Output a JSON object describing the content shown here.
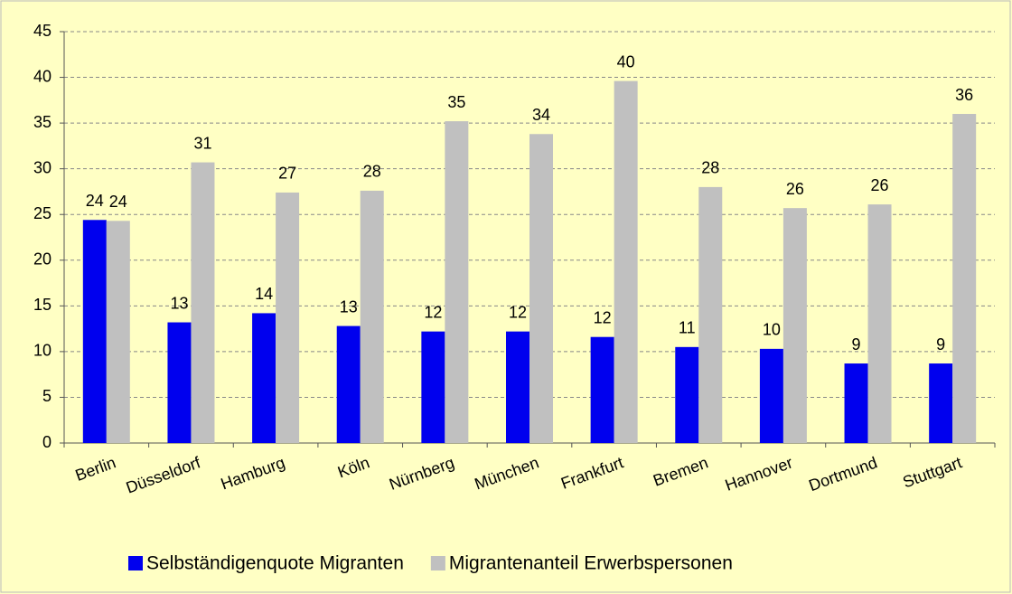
{
  "chart_data": {
    "type": "bar",
    "categories": [
      "Berlin",
      "Düsseldorf",
      "Hamburg",
      "Köln",
      "Nürnberg",
      "München",
      "Frankfurt",
      "Bremen",
      "Hannover",
      "Dortmund",
      "Stuttgart"
    ],
    "series": [
      {
        "name": "Selbständigenquote Migranten",
        "color": "#0000ee",
        "values": [
          24.4,
          13.2,
          14.2,
          12.8,
          12.2,
          12.2,
          11.6,
          10.5,
          10.3,
          8.7,
          8.7
        ],
        "value_labels": [
          "24",
          "13",
          "14",
          "13",
          "12",
          "12",
          "12",
          "11",
          "10",
          "9",
          "9"
        ]
      },
      {
        "name": "Migrantenanteil Erwerbspersonen",
        "color": "#c0c0c0",
        "values": [
          24.3,
          30.7,
          27.4,
          27.6,
          35.2,
          33.8,
          39.6,
          28.0,
          25.7,
          26.1,
          36.0
        ],
        "value_labels": [
          "24",
          "31",
          "27",
          "28",
          "35",
          "34",
          "40",
          "28",
          "26",
          "26",
          "36"
        ]
      }
    ],
    "ylim": [
      0,
      45
    ],
    "yticks": [
      0,
      5,
      10,
      15,
      20,
      25,
      30,
      35,
      40,
      45
    ],
    "grid": true,
    "legend": "bottom"
  }
}
